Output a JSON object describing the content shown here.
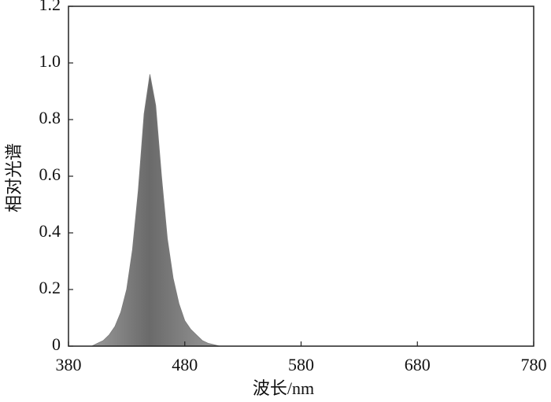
{
  "chart_data": {
    "type": "area",
    "x_label": "波长/nm",
    "y_label": "相对光谱",
    "x": [
      400,
      405,
      410,
      415,
      420,
      425,
      430,
      435,
      440,
      445,
      450,
      455,
      460,
      465,
      470,
      475,
      480,
      485,
      490,
      495,
      500,
      505,
      510
    ],
    "values": [
      0,
      0.01,
      0.02,
      0.04,
      0.07,
      0.12,
      0.2,
      0.34,
      0.55,
      0.82,
      0.96,
      0.85,
      0.6,
      0.38,
      0.24,
      0.15,
      0.09,
      0.06,
      0.04,
      0.02,
      0.01,
      0.005,
      0
    ],
    "color": "#7a7a7a",
    "xlim": [
      380,
      780
    ],
    "xticks": [
      380,
      480,
      580,
      680,
      780
    ],
    "ylim": [
      0,
      1.2
    ],
    "yticks": [
      0,
      0.2,
      0.4,
      0.6,
      0.8,
      {
        "value": 1,
        "label": "1.0"
      },
      1.2
    ]
  }
}
